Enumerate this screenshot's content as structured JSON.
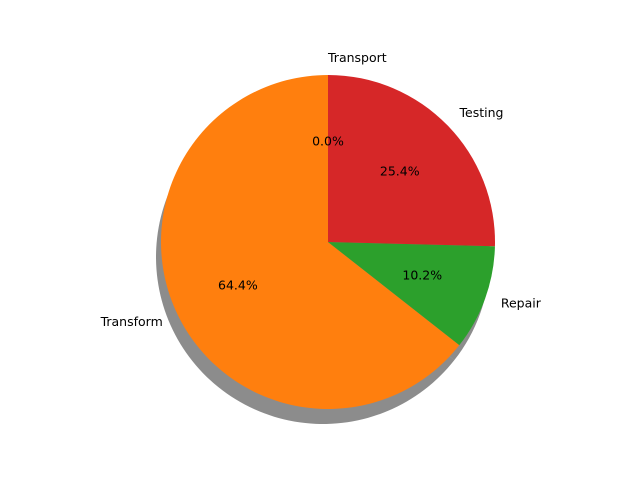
{
  "chart_data": {
    "type": "pie",
    "title": "",
    "start_angle_deg": 90,
    "direction": "counterclockwise",
    "shadow": true,
    "slices": [
      {
        "label": "Transport",
        "value": 0.0,
        "pct_label": "0.0%",
        "color": "#1f77b4"
      },
      {
        "label": "Transform",
        "value": 64.4,
        "pct_label": "64.4%",
        "color": "#ff7f0e"
      },
      {
        "label": "Repair",
        "value": 10.2,
        "pct_label": "10.2%",
        "color": "#2ca02c"
      },
      {
        "label": "Testing",
        "value": 25.4,
        "pct_label": "25.4%",
        "color": "#d62728"
      }
    ]
  }
}
